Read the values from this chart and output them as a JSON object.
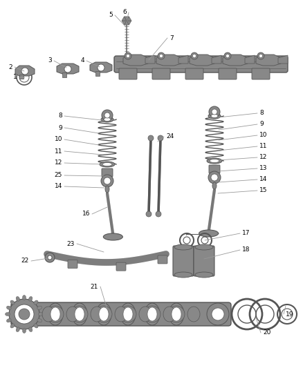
{
  "bg_color": "#ffffff",
  "lc": "#888888",
  "dc": "#555555",
  "label_color": "#000000",
  "fs": 6.5,
  "fig_w": 4.38,
  "fig_h": 5.33,
  "dpi": 100
}
